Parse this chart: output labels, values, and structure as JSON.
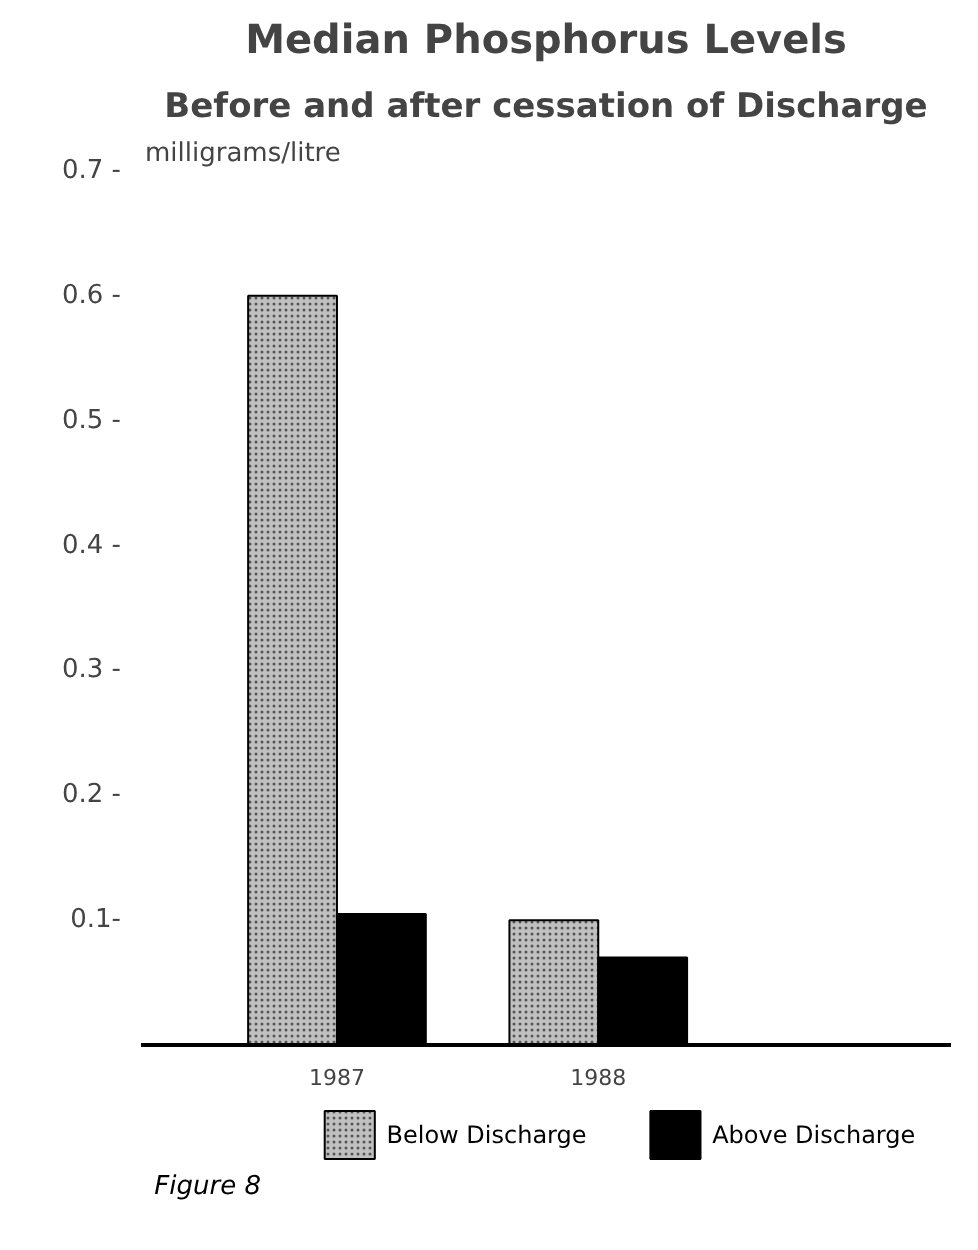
{
  "chart_data": {
    "type": "bar",
    "title": "Median Phosphorus Levels",
    "subtitle": "Before and after cessation of Discharge",
    "ylabel": "milligrams/litre",
    "categories": [
      "1987",
      "1988"
    ],
    "series": [
      {
        "name": "Below Discharge",
        "color": "#c0c0c0",
        "values": [
          0.6,
          0.1
        ]
      },
      {
        "name": "Above Discharge",
        "color": "#000000",
        "values": [
          0.105,
          0.07
        ]
      }
    ],
    "ylim": [
      0,
      0.7
    ],
    "yticks": [
      {
        "value": 0.1,
        "label": "0.1-"
      },
      {
        "value": 0.2,
        "label": "0.2 -"
      },
      {
        "value": 0.3,
        "label": "0.3 -"
      },
      {
        "value": 0.4,
        "label": "0.4 -"
      },
      {
        "value": 0.5,
        "label": "0.5 -"
      },
      {
        "value": 0.6,
        "label": "0.6 -"
      },
      {
        "value": 0.7,
        "label": "0.7 -"
      }
    ],
    "grid": false,
    "legend": "bottom",
    "annotations": [
      "Figure 8"
    ]
  }
}
